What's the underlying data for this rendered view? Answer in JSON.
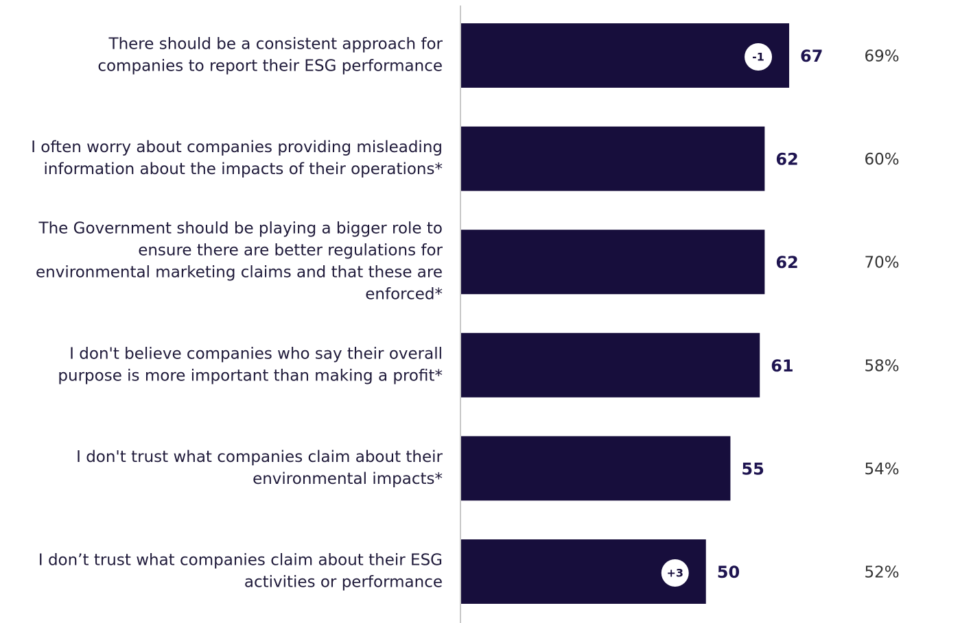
{
  "chart_data": {
    "type": "bar",
    "orientation": "horizontal",
    "categories": [
      [
        "There should be a consistent approach for",
        "companies to report their ESG performance"
      ],
      [
        "I often worry about companies providing misleading",
        "information about the impacts of their operations*"
      ],
      [
        "The Government should be playing a bigger role to",
        "ensure there are better regulations for",
        "environmental marketing claims and that these are",
        "enforced*"
      ],
      [
        "I don't believe companies who say their overall",
        "purpose is more important than making a profit*"
      ],
      [
        "I don't trust what companies claim about their",
        "environmental impacts*"
      ],
      [
        "I don’t trust what companies claim about their ESG",
        "activities or performance"
      ]
    ],
    "values": [
      67,
      62,
      62,
      61,
      55,
      50
    ],
    "color": "#170e3c",
    "changes": [
      -1,
      null,
      null,
      null,
      null,
      {
        "value": 3,
        "label": "+3"
      }
    ],
    "comparison_values": [
      69,
      60,
      70,
      58,
      54,
      52
    ],
    "comparison_labels": [
      "69%",
      "60%",
      "70%",
      "58%",
      "54%",
      "52%"
    ]
  }
}
